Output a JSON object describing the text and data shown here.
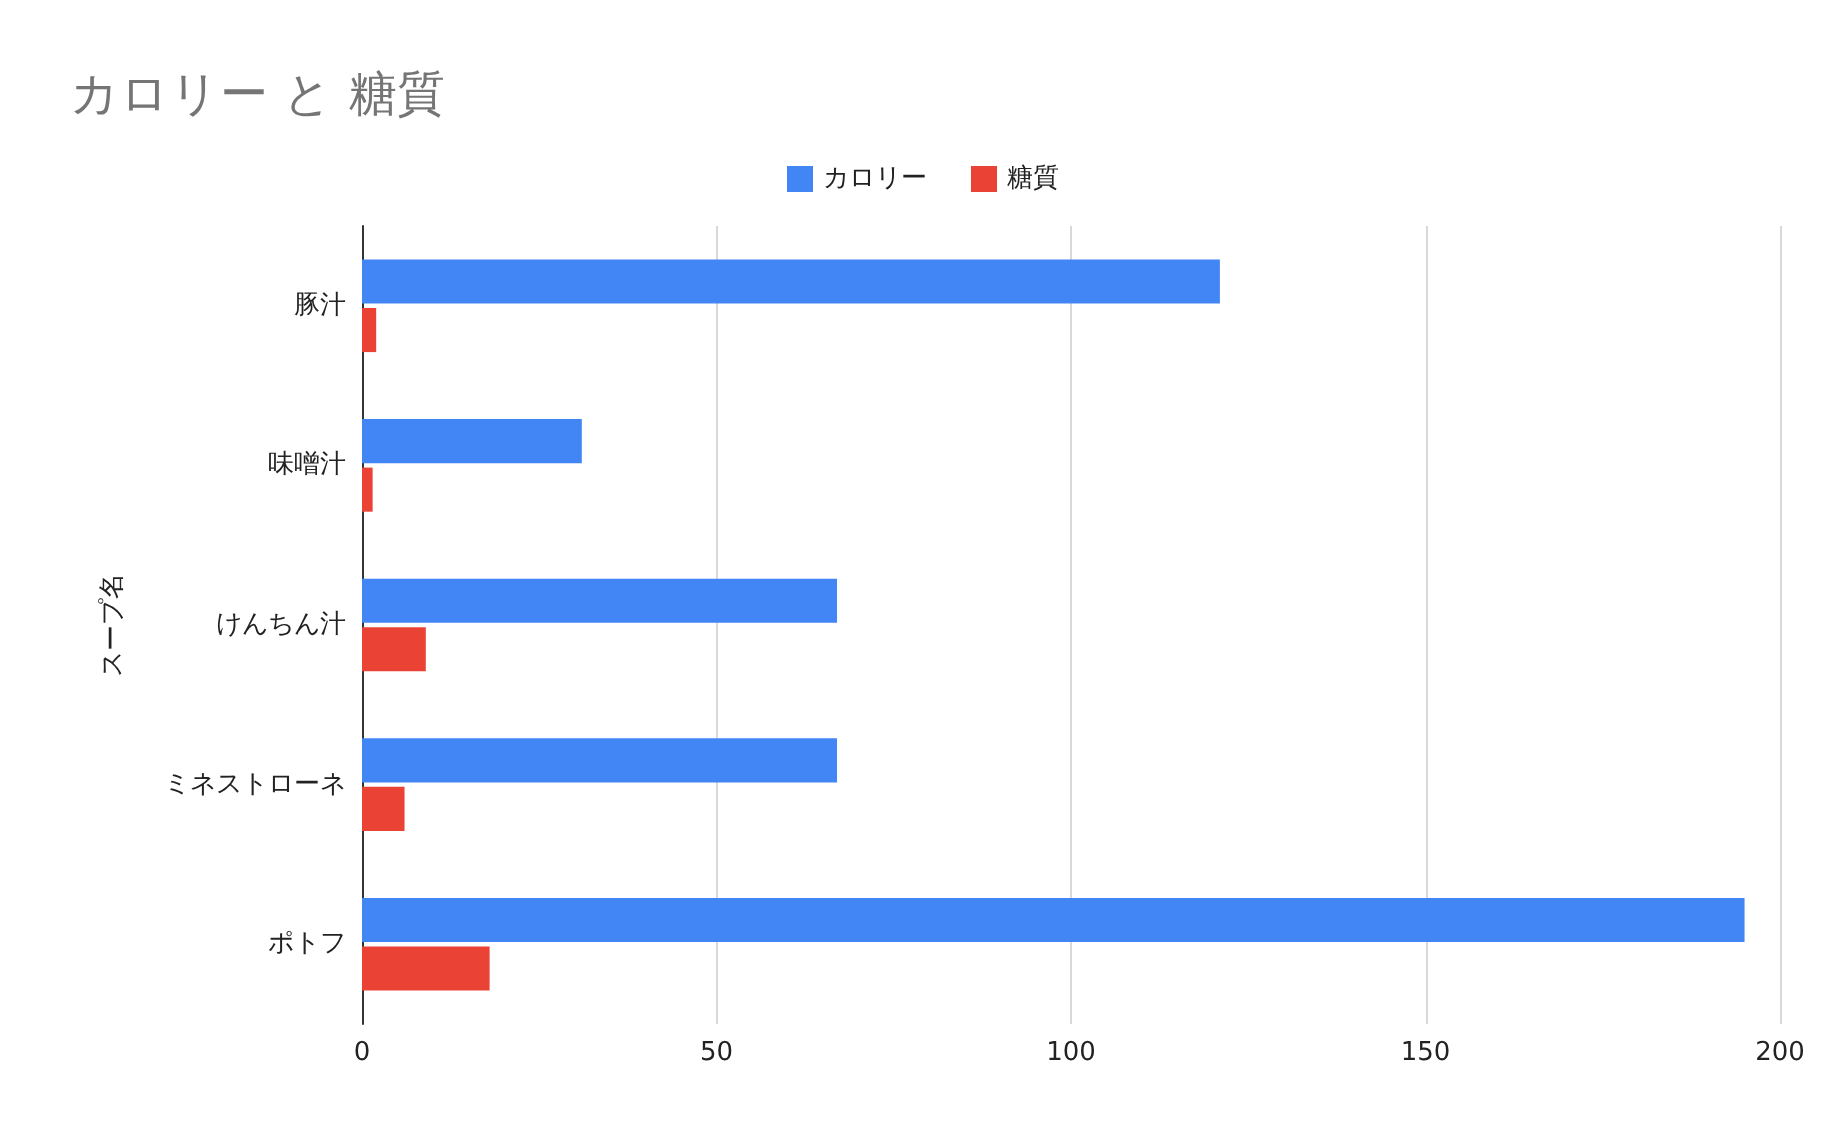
{
  "chart_data": {
    "type": "bar",
    "orientation": "horizontal",
    "title": "カロリー と 糖質",
    "ylabel": "スープ名",
    "categories": [
      "豚汁",
      "味噌汁",
      "けんちん汁",
      "ミネストローネ",
      "ポトフ"
    ],
    "series": [
      {
        "name": "カロリー",
        "color": "#4285f4",
        "values": [
          121,
          31,
          67,
          67,
          195
        ]
      },
      {
        "name": "糖質",
        "color": "#ea4335",
        "values": [
          2,
          1.5,
          9,
          6,
          18
        ]
      }
    ],
    "xlim": [
      0,
      200
    ],
    "xticks": [
      0,
      50,
      100,
      150,
      200
    ],
    "grid": "x",
    "legend": "top"
  }
}
